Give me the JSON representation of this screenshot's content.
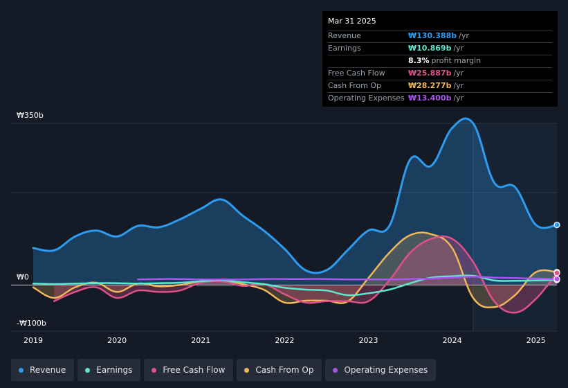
{
  "tooltip": {
    "date": "Mar 31 2025",
    "rows": [
      {
        "label": "Revenue",
        "value": "₩130.388b",
        "unit": "/yr",
        "color": "#2d9cf0"
      },
      {
        "label": "Earnings",
        "value": "₩10.869b",
        "unit": "/yr",
        "color": "#5ee7d0"
      },
      {
        "label": "",
        "value": "8.3%",
        "unit": "profit margin",
        "color": "#ffffff"
      },
      {
        "label": "Free Cash Flow",
        "value": "₩25.887b",
        "unit": "/yr",
        "color": "#e0508a"
      },
      {
        "label": "Cash From Op",
        "value": "₩28.277b",
        "unit": "/yr",
        "color": "#f0b65a"
      },
      {
        "label": "Operating Expenses",
        "value": "₩13.400b",
        "unit": "/yr",
        "color": "#a855f0"
      }
    ]
  },
  "legend": [
    {
      "label": "Revenue",
      "color": "#2d9cf0"
    },
    {
      "label": "Earnings",
      "color": "#5ee7d0"
    },
    {
      "label": "Free Cash Flow",
      "color": "#e0508a"
    },
    {
      "label": "Cash From Op",
      "color": "#f0b65a"
    },
    {
      "label": "Operating Expenses",
      "color": "#a855f0"
    }
  ],
  "chart_data": {
    "type": "area",
    "title": "",
    "xlabel": "",
    "ylabel": "",
    "ylim": [
      -100,
      350
    ],
    "xlim": [
      2019.0,
      2025.25
    ],
    "y_tick_labels": [
      {
        "value": 350,
        "label": "₩350b"
      },
      {
        "value": 0,
        "label": "₩0"
      },
      {
        "value": -100,
        "label": "-₩100b"
      }
    ],
    "y_gridlines": [
      350,
      200,
      0
    ],
    "x_tick_labels": [
      {
        "value": 2019,
        "label": "2019"
      },
      {
        "value": 2020,
        "label": "2020"
      },
      {
        "value": 2021,
        "label": "2021"
      },
      {
        "value": 2022,
        "label": "2022"
      },
      {
        "value": 2023,
        "label": "2023"
      },
      {
        "value": 2024,
        "label": "2024"
      },
      {
        "value": 2025,
        "label": "2025"
      }
    ],
    "forecast_start": 2024.25,
    "series": [
      {
        "name": "Revenue",
        "color": "#2d9cf0",
        "fill": true,
        "x": [
          2019.0,
          2019.25,
          2019.5,
          2019.75,
          2020.0,
          2020.25,
          2020.5,
          2020.75,
          2021.0,
          2021.25,
          2021.5,
          2021.75,
          2022.0,
          2022.25,
          2022.5,
          2022.75,
          2023.0,
          2023.25,
          2023.5,
          2023.75,
          2024.0,
          2024.25,
          2024.5,
          2024.75,
          2025.0,
          2025.25
        ],
        "values": [
          80,
          75,
          105,
          118,
          105,
          128,
          125,
          142,
          165,
          185,
          150,
          118,
          78,
          32,
          32,
          75,
          118,
          128,
          272,
          258,
          340,
          350,
          222,
          212,
          130,
          130
        ]
      },
      {
        "name": "Earnings",
        "color": "#5ee7d0",
        "fill": false,
        "x": [
          2019.0,
          2019.25,
          2019.5,
          2019.75,
          2020.0,
          2020.25,
          2020.5,
          2020.75,
          2021.0,
          2021.25,
          2021.5,
          2021.75,
          2022.0,
          2022.25,
          2022.5,
          2022.75,
          2023.0,
          2023.25,
          2023.5,
          2023.75,
          2024.0,
          2024.25,
          2024.5,
          2024.75,
          2025.0,
          2025.25
        ],
        "values": [
          3,
          2,
          3,
          4,
          4,
          3,
          4,
          5,
          8,
          10,
          6,
          2,
          -6,
          -10,
          -12,
          -22,
          -18,
          -10,
          4,
          16,
          19,
          20,
          10,
          9,
          10,
          11
        ]
      },
      {
        "name": "Free Cash Flow",
        "color": "#e0508a",
        "fill": true,
        "x": [
          2019.25,
          2019.5,
          2019.75,
          2020.0,
          2020.25,
          2020.5,
          2020.75,
          2021.0,
          2021.25,
          2021.5,
          2021.75,
          2022.0,
          2022.25,
          2022.5,
          2022.75,
          2023.0,
          2023.25,
          2023.5,
          2023.75,
          2024.0,
          2024.25,
          2024.5,
          2024.75,
          2025.0,
          2025.25
        ],
        "values": [
          -35,
          -15,
          -5,
          -28,
          -12,
          -15,
          -12,
          5,
          8,
          -2,
          2,
          -20,
          -38,
          -35,
          -35,
          -35,
          10,
          70,
          100,
          100,
          50,
          -35,
          -60,
          -30,
          26
        ]
      },
      {
        "name": "Cash From Op",
        "color": "#f0b65a",
        "fill": true,
        "x": [
          2019.0,
          2019.25,
          2019.5,
          2019.75,
          2020.0,
          2020.25,
          2020.5,
          2020.75,
          2021.0,
          2021.25,
          2021.5,
          2021.75,
          2022.0,
          2022.25,
          2022.5,
          2022.75,
          2023.0,
          2023.25,
          2023.5,
          2023.75,
          2024.0,
          2024.25,
          2024.5,
          2024.75,
          2025.0,
          2025.25
        ],
        "values": [
          -5,
          -28,
          -5,
          5,
          -15,
          3,
          -3,
          0,
          8,
          10,
          2,
          -10,
          -38,
          -34,
          -34,
          -36,
          15,
          70,
          108,
          110,
          80,
          -28,
          -48,
          -22,
          28,
          28
        ]
      },
      {
        "name": "Operating Expenses",
        "color": "#a855f0",
        "fill": false,
        "x": [
          2020.25,
          2020.5,
          2020.75,
          2021.0,
          2021.25,
          2021.5,
          2021.75,
          2022.0,
          2022.25,
          2022.5,
          2022.75,
          2023.0,
          2023.25,
          2023.5,
          2023.75,
          2024.0,
          2024.25,
          2024.5,
          2024.75,
          2025.0,
          2025.25
        ],
        "values": [
          12,
          13,
          13,
          12,
          12,
          12,
          13,
          13,
          13,
          13,
          12,
          12,
          12,
          13,
          14,
          16,
          18,
          16,
          15,
          14,
          13
        ]
      }
    ]
  }
}
